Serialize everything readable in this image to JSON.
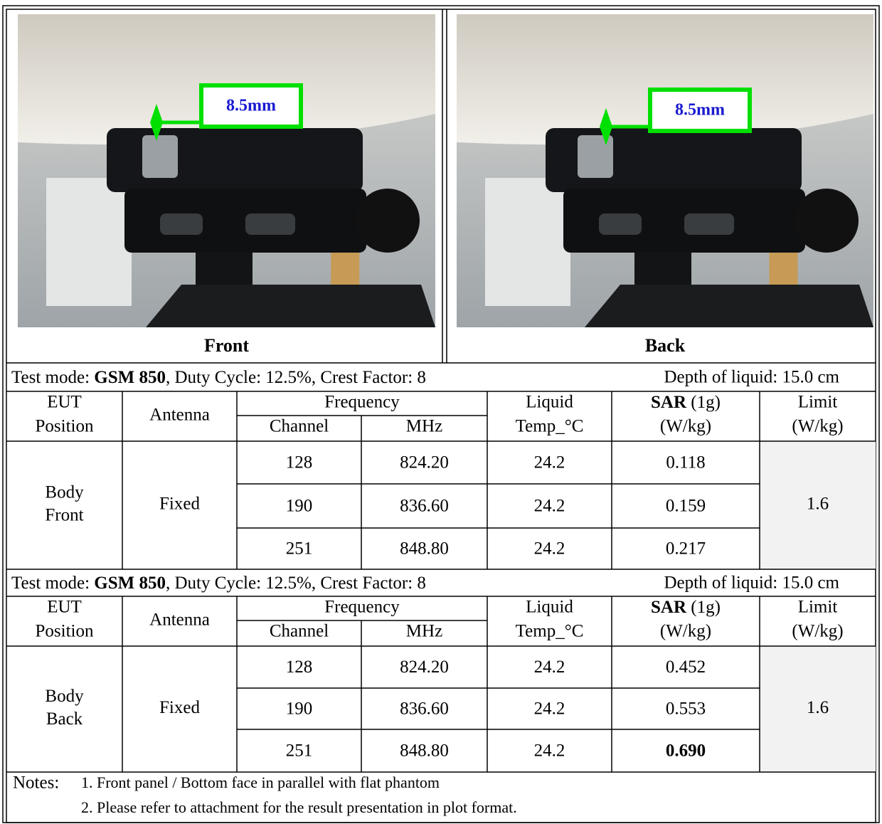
{
  "photos": [
    {
      "caption": "Front",
      "label": "8.5mm"
    },
    {
      "caption": "Back",
      "label": "8.5mm"
    }
  ],
  "sections": [
    {
      "mode_prefix": "Test mode: ",
      "mode": "GSM 850",
      "mode_suffix": ", Duty Cycle: 12.5%, Crest Factor: 8",
      "depth": "Depth of liquid: 15.0 cm",
      "position": [
        "Body",
        "Front"
      ],
      "antenna": "Fixed",
      "limit": "1.6",
      "rows": [
        {
          "channel": "128",
          "mhz": "824.20",
          "temp": "24.2",
          "sar": "0.118"
        },
        {
          "channel": "190",
          "mhz": "836.60",
          "temp": "24.2",
          "sar": "0.159"
        },
        {
          "channel": "251",
          "mhz": "848.80",
          "temp": "24.2",
          "sar": "0.217"
        }
      ]
    },
    {
      "mode_prefix": "Test mode: ",
      "mode": "GSM 850",
      "mode_suffix": ", Duty Cycle: 12.5%, Crest Factor: 8",
      "depth": "Depth of liquid: 15.0 cm",
      "position": [
        "Body",
        "Back"
      ],
      "antenna": "Fixed",
      "limit": "1.6",
      "rows": [
        {
          "channel": "128",
          "mhz": "824.20",
          "temp": "24.2",
          "sar": "0.452"
        },
        {
          "channel": "190",
          "mhz": "836.60",
          "temp": "24.2",
          "sar": "0.553"
        },
        {
          "channel": "251",
          "mhz": "848.80",
          "temp": "24.2",
          "sar": "0.690",
          "sar_bold": true
        }
      ]
    }
  ],
  "headers": {
    "eut": [
      "EUT",
      "Position"
    ],
    "antenna": "Antenna",
    "frequency": "Frequency",
    "channel": "Channel",
    "mhz": "MHz",
    "liquid": [
      "Liquid",
      "Temp_°C"
    ],
    "sar": "SAR",
    "sar_unit": " (1g)",
    "sar_units": "(W/kg)",
    "limit": [
      "Limit",
      "(W/kg)"
    ]
  },
  "notes": {
    "label": "Notes:",
    "items": [
      "1. Front panel / Bottom face in parallel with flat  phantom",
      "2. Please refer to attachment for the result presentation in plot format."
    ]
  }
}
